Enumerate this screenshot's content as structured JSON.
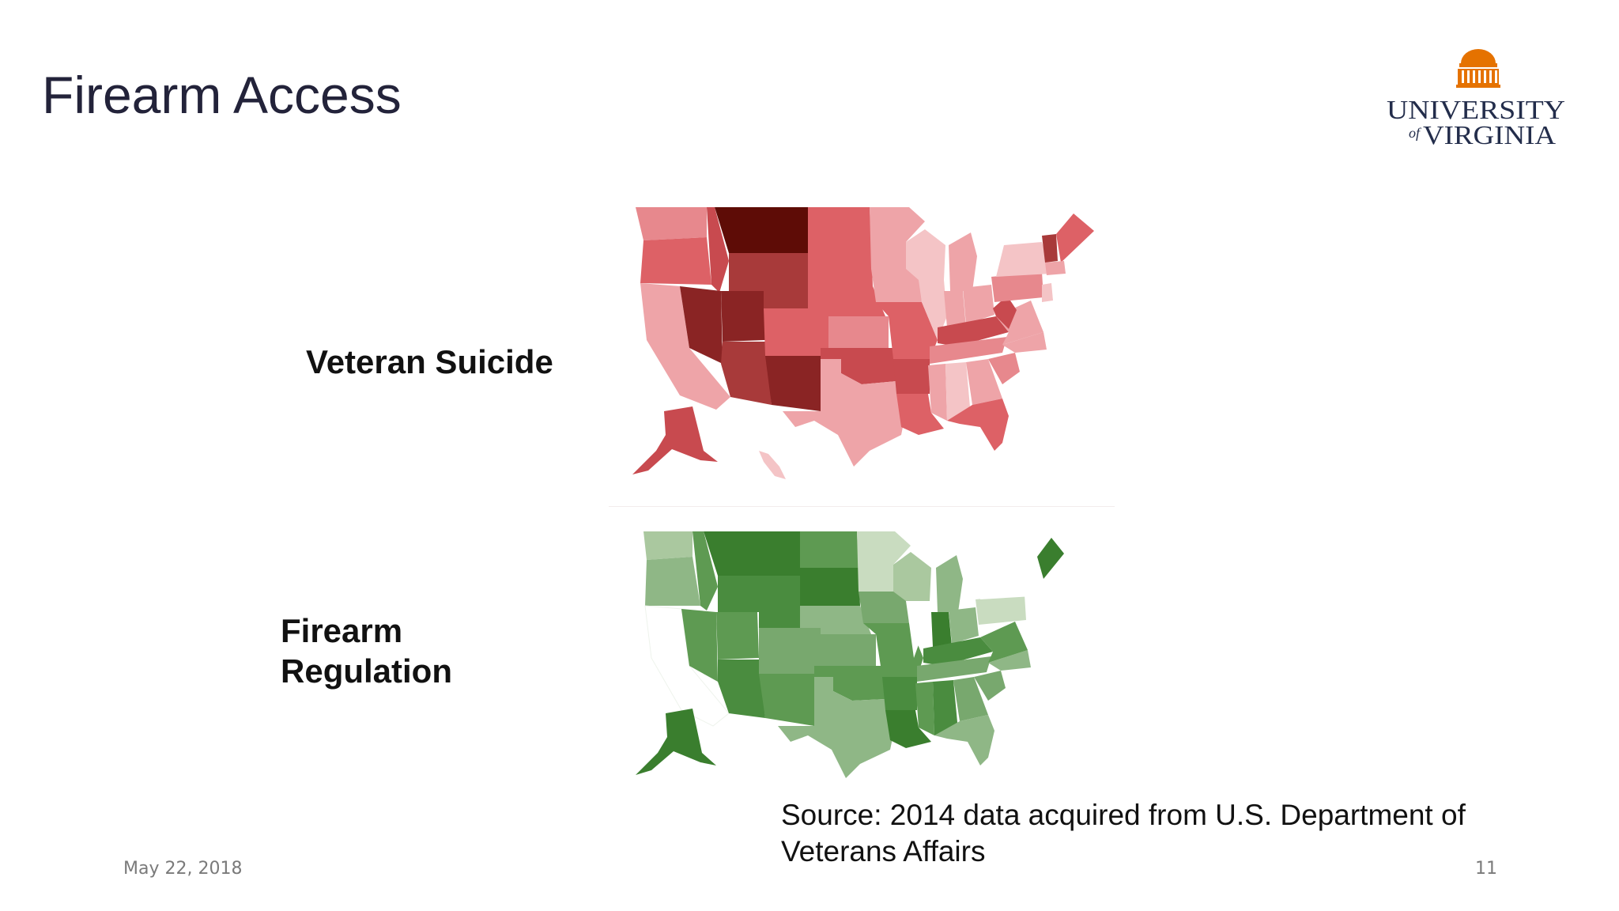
{
  "slide": {
    "title": "Firearm Access",
    "logo_text_line1": "UNIVERSITY",
    "logo_text_of": "of",
    "logo_text_line2": "VIRGINIA",
    "labels": {
      "top": "Veteran Suicide",
      "bottom_line1": "Firearm",
      "bottom_line2": "Regulation"
    },
    "source_line1": "Source: 2014 data acquired from U.S. Department of",
    "source_line2": "Veterans Affairs",
    "date": "May 22, 2018",
    "page_number": "11"
  },
  "colors": {
    "title": "#23233a",
    "logo_orange": "#e57200",
    "logo_navy": "#232d4b",
    "red_palette": [
      "#f4c4c6",
      "#eea4a8",
      "#e7888d",
      "#dd6166",
      "#c84a4f",
      "#a83a3a",
      "#8a2424",
      "#5e0c06"
    ],
    "green_palette": [
      "#c9dcc0",
      "#aac89f",
      "#8fb786",
      "#78a86e",
      "#5e9a52",
      "#4a8c3f",
      "#3a7e2e"
    ]
  },
  "maps": [
    {
      "name": "veteran-suicide-map",
      "palette": "red",
      "description_label": "Veteran Suicide"
    },
    {
      "name": "firearm-regulation-map",
      "palette": "green",
      "description_label": "Firearm Regulation"
    }
  ]
}
